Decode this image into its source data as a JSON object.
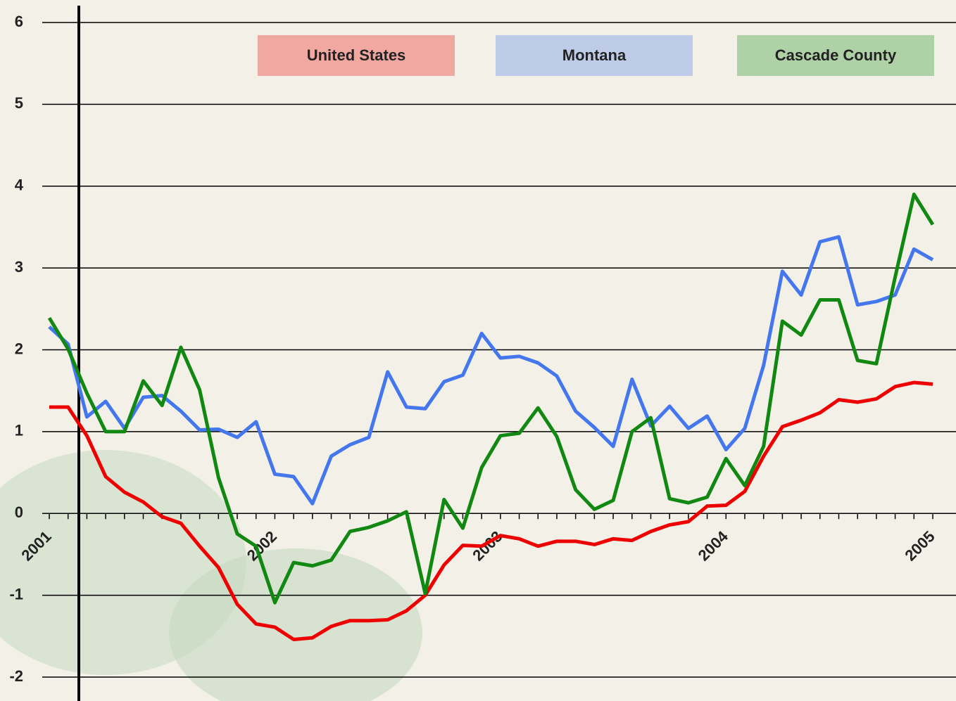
{
  "chart_data": {
    "type": "line",
    "categories": [
      "2001",
      null,
      null,
      null,
      null,
      null,
      null,
      null,
      null,
      null,
      null,
      null,
      "2002",
      null,
      null,
      null,
      null,
      null,
      null,
      null,
      null,
      null,
      null,
      null,
      "2003",
      null,
      null,
      null,
      null,
      null,
      null,
      null,
      null,
      null,
      null,
      null,
      "2004",
      null,
      null,
      null,
      null,
      null,
      null,
      null,
      null,
      null,
      null,
      "2005"
    ],
    "series": [
      {
        "name": "United States",
        "color": "#ee0000",
        "values": [
          1.3,
          1.3,
          0.95,
          0.45,
          0.26,
          0.14,
          -0.04,
          -0.12,
          -0.4,
          -0.66,
          -1.11,
          -1.35,
          -1.39,
          -1.54,
          -1.52,
          -1.38,
          -1.31,
          -1.31,
          -1.3,
          -1.19,
          -1.0,
          -0.63,
          -0.39,
          -0.4,
          -0.27,
          -0.31,
          -0.4,
          -0.34,
          -0.34,
          -0.38,
          -0.31,
          -0.33,
          -0.22,
          -0.14,
          -0.1,
          0.09,
          0.1,
          0.27,
          0.7,
          1.06,
          1.14,
          1.23,
          1.39,
          1.36,
          1.4,
          1.55,
          1.6,
          1.58
        ]
      },
      {
        "name": "Montana",
        "color": "#4477ee",
        "values": [
          2.28,
          2.07,
          1.18,
          1.37,
          1.04,
          1.42,
          1.44,
          1.25,
          1.02,
          1.03,
          0.93,
          1.12,
          0.48,
          0.45,
          0.12,
          0.7,
          0.84,
          0.93,
          1.73,
          1.3,
          1.28,
          1.61,
          1.69,
          2.2,
          1.9,
          1.92,
          1.84,
          1.68,
          1.25,
          1.05,
          0.82,
          1.64,
          1.07,
          1.31,
          1.04,
          1.19,
          0.78,
          1.04,
          1.81,
          2.96,
          2.67,
          3.32,
          3.38,
          2.55,
          2.59,
          2.67,
          3.23,
          3.1
        ]
      },
      {
        "name": "Cascade County",
        "color": "#118811",
        "values": [
          2.39,
          2.01,
          1.47,
          1.0,
          1.0,
          1.62,
          1.32,
          2.03,
          1.51,
          0.44,
          -0.25,
          -0.4,
          -1.09,
          -0.6,
          -0.64,
          -0.57,
          -0.22,
          -0.17,
          -0.09,
          0.02,
          -0.98,
          0.17,
          -0.18,
          0.56,
          0.95,
          0.98,
          1.29,
          0.94,
          0.29,
          0.05,
          0.16,
          1.0,
          1.17,
          0.18,
          0.13,
          0.2,
          0.67,
          0.34,
          0.82,
          2.35,
          2.18,
          2.61,
          2.61,
          1.87,
          1.83,
          2.89,
          3.9,
          3.53
        ]
      }
    ],
    "ylim": [
      -2,
      6
    ],
    "yticks": [
      -2,
      -1,
      0,
      1,
      2,
      3,
      4,
      5,
      6
    ],
    "grid": true
  }
}
